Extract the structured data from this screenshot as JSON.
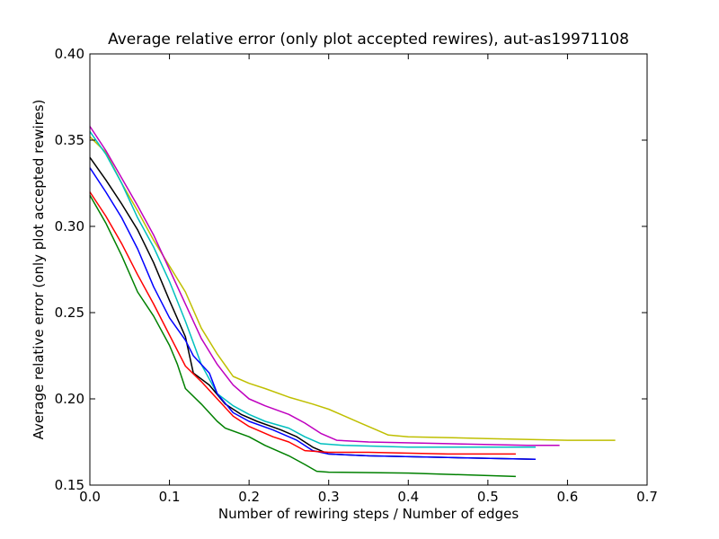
{
  "chart_data": {
    "type": "line",
    "title": "Average relative error (only plot accepted rewires), aut-as19971108",
    "xlabel": "Number of rewiring steps / Number of edges",
    "ylabel": "Average relative error (only plot accepted rewires)",
    "xlim": [
      0,
      0.7
    ],
    "ylim": [
      0.15,
      0.4
    ],
    "xticks": [
      "0.0",
      "0.1",
      "0.2",
      "0.3",
      "0.4",
      "0.5",
      "0.6",
      "0.7"
    ],
    "yticks": [
      "0.15",
      "0.20",
      "0.25",
      "0.30",
      "0.35",
      "0.40"
    ],
    "grid": false,
    "legend": null,
    "series": [
      {
        "color": "#bfbf00",
        "points": [
          [
            0.0,
            0.352
          ],
          [
            0.02,
            0.343
          ],
          [
            0.04,
            0.325
          ],
          [
            0.06,
            0.309
          ],
          [
            0.08,
            0.292
          ],
          [
            0.1,
            0.277
          ],
          [
            0.12,
            0.262
          ],
          [
            0.14,
            0.241
          ],
          [
            0.16,
            0.226
          ],
          [
            0.18,
            0.213
          ],
          [
            0.2,
            0.209
          ],
          [
            0.22,
            0.206
          ],
          [
            0.25,
            0.201
          ],
          [
            0.28,
            0.197
          ],
          [
            0.3,
            0.194
          ],
          [
            0.32,
            0.19
          ],
          [
            0.34,
            0.186
          ],
          [
            0.36,
            0.182
          ],
          [
            0.375,
            0.179
          ],
          [
            0.4,
            0.178
          ],
          [
            0.5,
            0.177
          ],
          [
            0.6,
            0.176
          ],
          [
            0.66,
            0.176
          ]
        ]
      },
      {
        "color": "#bf00bf",
        "points": [
          [
            0.0,
            0.358
          ],
          [
            0.02,
            0.344
          ],
          [
            0.04,
            0.328
          ],
          [
            0.06,
            0.312
          ],
          [
            0.08,
            0.295
          ],
          [
            0.1,
            0.275
          ],
          [
            0.12,
            0.255
          ],
          [
            0.14,
            0.235
          ],
          [
            0.16,
            0.22
          ],
          [
            0.18,
            0.208
          ],
          [
            0.2,
            0.2
          ],
          [
            0.22,
            0.196
          ],
          [
            0.25,
            0.191
          ],
          [
            0.27,
            0.186
          ],
          [
            0.29,
            0.18
          ],
          [
            0.31,
            0.176
          ],
          [
            0.35,
            0.175
          ],
          [
            0.45,
            0.174
          ],
          [
            0.55,
            0.173
          ],
          [
            0.59,
            0.173
          ]
        ]
      },
      {
        "color": "#00bfbf",
        "points": [
          [
            0.0,
            0.355
          ],
          [
            0.02,
            0.342
          ],
          [
            0.04,
            0.325
          ],
          [
            0.06,
            0.305
          ],
          [
            0.08,
            0.288
          ],
          [
            0.1,
            0.268
          ],
          [
            0.12,
            0.245
          ],
          [
            0.14,
            0.22
          ],
          [
            0.16,
            0.203
          ],
          [
            0.18,
            0.196
          ],
          [
            0.2,
            0.191
          ],
          [
            0.22,
            0.187
          ],
          [
            0.25,
            0.183
          ],
          [
            0.27,
            0.178
          ],
          [
            0.29,
            0.174
          ],
          [
            0.32,
            0.173
          ],
          [
            0.4,
            0.172
          ],
          [
            0.5,
            0.172
          ],
          [
            0.56,
            0.172
          ]
        ]
      },
      {
        "color": "#000000",
        "points": [
          [
            0.0,
            0.34
          ],
          [
            0.02,
            0.327
          ],
          [
            0.04,
            0.313
          ],
          [
            0.06,
            0.298
          ],
          [
            0.08,
            0.279
          ],
          [
            0.1,
            0.257
          ],
          [
            0.12,
            0.236
          ],
          [
            0.13,
            0.215
          ],
          [
            0.15,
            0.208
          ],
          [
            0.17,
            0.197
          ],
          [
            0.19,
            0.191
          ],
          [
            0.21,
            0.187
          ],
          [
            0.24,
            0.182
          ],
          [
            0.26,
            0.178
          ],
          [
            0.28,
            0.172
          ],
          [
            0.3,
            0.168
          ],
          [
            0.35,
            0.167
          ],
          [
            0.45,
            0.166
          ],
          [
            0.56,
            0.165
          ]
        ]
      },
      {
        "color": "#0000ff",
        "points": [
          [
            0.0,
            0.334
          ],
          [
            0.02,
            0.32
          ],
          [
            0.04,
            0.305
          ],
          [
            0.06,
            0.287
          ],
          [
            0.08,
            0.265
          ],
          [
            0.1,
            0.247
          ],
          [
            0.12,
            0.234
          ],
          [
            0.13,
            0.225
          ],
          [
            0.15,
            0.215
          ],
          [
            0.16,
            0.203
          ],
          [
            0.18,
            0.192
          ],
          [
            0.2,
            0.187
          ],
          [
            0.23,
            0.182
          ],
          [
            0.26,
            0.176
          ],
          [
            0.28,
            0.17
          ],
          [
            0.3,
            0.168
          ],
          [
            0.35,
            0.167
          ],
          [
            0.45,
            0.166
          ],
          [
            0.56,
            0.165
          ]
        ]
      },
      {
        "color": "#ff0000",
        "points": [
          [
            0.0,
            0.32
          ],
          [
            0.02,
            0.306
          ],
          [
            0.04,
            0.29
          ],
          [
            0.06,
            0.272
          ],
          [
            0.08,
            0.255
          ],
          [
            0.1,
            0.237
          ],
          [
            0.12,
            0.219
          ],
          [
            0.14,
            0.21
          ],
          [
            0.16,
            0.2
          ],
          [
            0.18,
            0.19
          ],
          [
            0.2,
            0.184
          ],
          [
            0.23,
            0.178
          ],
          [
            0.25,
            0.175
          ],
          [
            0.27,
            0.17
          ],
          [
            0.3,
            0.169
          ],
          [
            0.35,
            0.169
          ],
          [
            0.45,
            0.168
          ],
          [
            0.535,
            0.168
          ]
        ]
      },
      {
        "color": "#008000",
        "points": [
          [
            0.0,
            0.318
          ],
          [
            0.02,
            0.302
          ],
          [
            0.04,
            0.283
          ],
          [
            0.06,
            0.262
          ],
          [
            0.08,
            0.248
          ],
          [
            0.1,
            0.231
          ],
          [
            0.11,
            0.22
          ],
          [
            0.12,
            0.206
          ],
          [
            0.14,
            0.197
          ],
          [
            0.16,
            0.187
          ],
          [
            0.17,
            0.183
          ],
          [
            0.2,
            0.178
          ],
          [
            0.22,
            0.173
          ],
          [
            0.25,
            0.167
          ],
          [
            0.27,
            0.162
          ],
          [
            0.285,
            0.158
          ],
          [
            0.3,
            0.1575
          ],
          [
            0.4,
            0.157
          ],
          [
            0.535,
            0.155
          ]
        ]
      }
    ]
  }
}
